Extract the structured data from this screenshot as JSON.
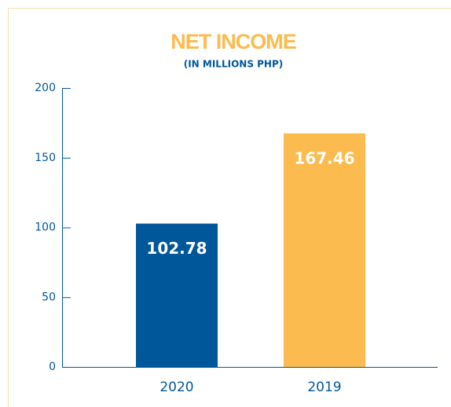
{
  "chart_data": {
    "type": "bar",
    "title": "NET INCOME",
    "subtitle": "(IN MILLIONS PHP)",
    "categories": [
      "2020",
      "2019"
    ],
    "values": [
      102.78,
      167.46
    ],
    "colors": [
      "#00579a",
      "#fbbb4e"
    ],
    "ylim": [
      0,
      200
    ],
    "yticks": [
      0,
      50,
      100,
      150,
      200
    ]
  }
}
